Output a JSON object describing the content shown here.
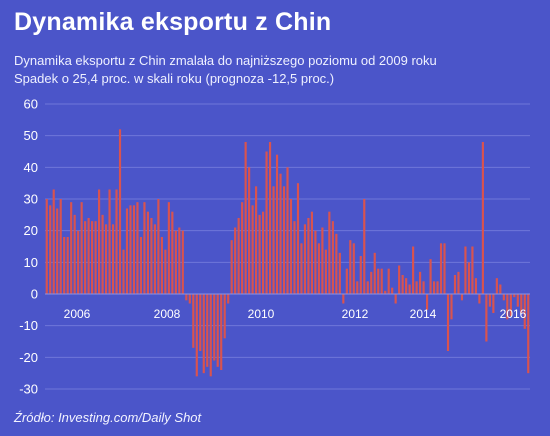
{
  "header": {
    "title": "Dynamika eksportu z Chin",
    "subtitle_1": "Dynamika eksportu z Chin zmalała do najniższego poziomu od 2009 roku",
    "subtitle_2": "Spadek o 25,4 proc. w skali roku (prognoza -12,5 proc.)"
  },
  "footer": {
    "source": "Źródło: Investing.com/Daily Shot"
  },
  "colors": {
    "background": "#4b55c9",
    "bar": "#d9534f",
    "grid": "#6f77d9",
    "text": "#ffffff"
  },
  "chart_data": {
    "type": "bar",
    "ylim": [
      -30,
      60
    ],
    "yticks": [
      60,
      50,
      40,
      30,
      20,
      10,
      0,
      -10,
      -20,
      -30
    ],
    "year_labels": [
      "2006",
      "2008",
      "2010",
      "2012",
      "2014",
      "2016"
    ],
    "grid": true,
    "values": [
      30,
      28,
      33,
      27,
      30,
      18,
      18,
      29,
      25,
      20,
      29,
      23,
      24,
      23,
      23,
      33,
      25,
      22,
      33,
      22,
      33,
      52,
      14,
      27,
      28,
      28,
      29,
      18,
      29,
      26,
      24,
      22,
      30,
      18,
      14,
      29,
      26,
      20,
      21,
      20,
      -2,
      -3,
      -17,
      -26,
      -18,
      -25,
      -23,
      -26,
      -21,
      -23,
      -24,
      -14,
      -3,
      17,
      21,
      24,
      29,
      48,
      40,
      28,
      34,
      25,
      26,
      45,
      48,
      34,
      44,
      38,
      34,
      40,
      30,
      23,
      35,
      16,
      22,
      24,
      26,
      20,
      16,
      21,
      14,
      26,
      23,
      19,
      13,
      -3,
      8,
      17,
      16,
      4,
      12,
      30,
      4,
      7,
      13,
      8,
      8,
      1,
      8,
      2,
      -3,
      9,
      6,
      5,
      3,
      15,
      4,
      7,
      4,
      -5,
      11,
      4,
      4,
      16,
      16,
      -18,
      -8,
      6,
      7,
      -2,
      15,
      10,
      15,
      5,
      -3,
      48,
      -15,
      -4,
      -6,
      5,
      3,
      -2,
      -8,
      -7,
      -1,
      -4,
      -6,
      -11,
      -25
    ]
  }
}
